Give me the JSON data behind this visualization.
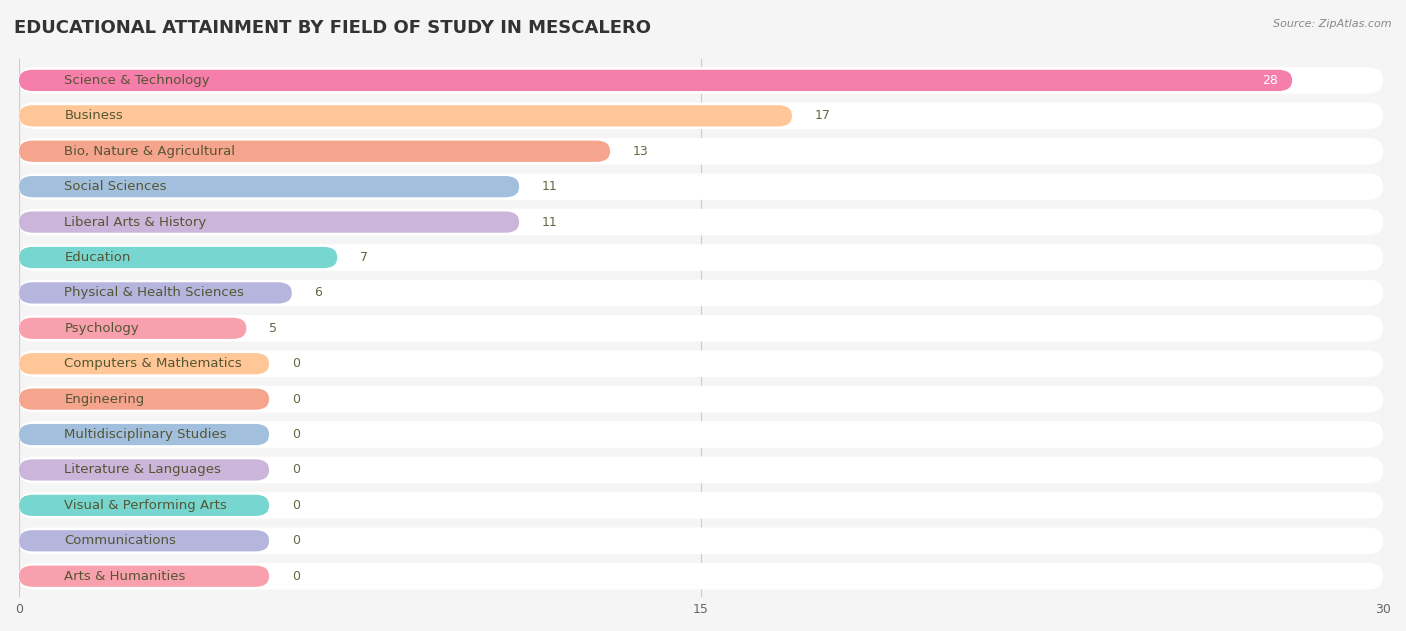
{
  "title": "EDUCATIONAL ATTAINMENT BY FIELD OF STUDY IN MESCALERO",
  "source": "Source: ZipAtlas.com",
  "categories": [
    "Science & Technology",
    "Business",
    "Bio, Nature & Agricultural",
    "Social Sciences",
    "Liberal Arts & History",
    "Education",
    "Physical & Health Sciences",
    "Psychology",
    "Computers & Mathematics",
    "Engineering",
    "Multidisciplinary Studies",
    "Literature & Languages",
    "Visual & Performing Arts",
    "Communications",
    "Arts & Humanities"
  ],
  "values": [
    28,
    17,
    13,
    11,
    11,
    7,
    6,
    5,
    0,
    0,
    0,
    0,
    0,
    0,
    0
  ],
  "bar_colors": [
    "#F4679D",
    "#FFBE85",
    "#F4967A",
    "#92B4D7",
    "#C4A8D4",
    "#5FD0C8",
    "#A8A8D8",
    "#F78FA0",
    "#FFBE85",
    "#F4967A",
    "#92B4D7",
    "#C4A8D4",
    "#5FD0C8",
    "#A8A8D8",
    "#F78FA0"
  ],
  "xlim": [
    0,
    30
  ],
  "xticks": [
    0,
    15,
    30
  ],
  "background_color": "#f5f5f5",
  "row_bg_color": "#ffffff",
  "row_bg_alpha": 0.85,
  "title_fontsize": 13,
  "label_fontsize": 9.5,
  "value_fontsize": 9,
  "zero_stub_value": 5.5
}
